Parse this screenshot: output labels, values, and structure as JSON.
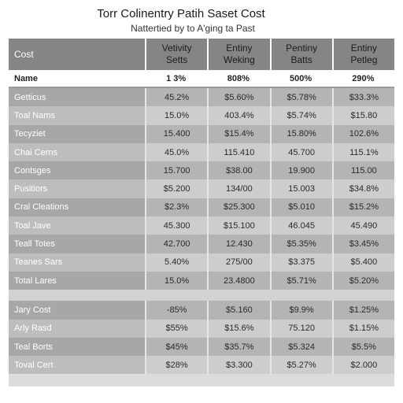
{
  "title": "Torr Colinentry Patih Saset Cost",
  "subtitle": "Nattertied by to A'ging ta Past",
  "table": {
    "corner": "Cost",
    "columns": [
      "Vetivity\nSetts",
      "Entiny\nWeking",
      "Pentiny\nBatts",
      "Entiny\nPetleg"
    ],
    "name_row": {
      "label": "Name",
      "values": [
        "1 3%",
        "808%",
        "500%",
        "290%"
      ]
    },
    "rows_top": [
      {
        "label": "Getticus",
        "values": [
          "45.2%",
          "$5.60%",
          "$5.78%",
          "$33.3%"
        ]
      },
      {
        "label": "Toal Nams",
        "values": [
          "15.0%",
          "403.4%",
          "$5.74%",
          "$15.80"
        ]
      },
      {
        "label": "Tecyziet",
        "values": [
          "15.400",
          "$15.4%",
          "15.80%",
          "102.6%"
        ]
      },
      {
        "label": "Chai Cerns",
        "values": [
          "45.0%",
          "115.410",
          "45.700",
          "115.1%"
        ]
      },
      {
        "label": "Contsges",
        "values": [
          "15.700",
          "$38.00",
          "19.900",
          "115.00"
        ]
      },
      {
        "label": "Pusitiors",
        "values": [
          "$5.200",
          "134/00",
          "15.003",
          "$34.8%"
        ]
      },
      {
        "label": "Cral Cleations",
        "values": [
          "$2.3%",
          "$25.300",
          "$5.010",
          "$15.2%"
        ]
      },
      {
        "label": "Toal Jave",
        "values": [
          "45.300",
          "$15.100",
          "46.045",
          "45.490"
        ]
      },
      {
        "label": "Teall Totes",
        "values": [
          "42.700",
          "12.430",
          "$5.35%",
          "$3.45%"
        ]
      },
      {
        "label": "Teanes Sars",
        "values": [
          "5.40%",
          "275/00",
          "$3.375",
          "$5.400"
        ]
      },
      {
        "label": "Total Lares",
        "values": [
          "15.0%",
          "23.4800",
          "$5.71%",
          "$5.20%"
        ]
      }
    ],
    "rows_bottom": [
      {
        "label": "Jary Cost",
        "values": [
          "-85%",
          "$5.160",
          "$9.9%",
          "$1.25%"
        ]
      },
      {
        "label": "Arly Rasd",
        "values": [
          "$55%",
          "$15.6%",
          "75.120",
          "$1.15%"
        ]
      },
      {
        "label": "Teal Borts",
        "values": [
          "$45%",
          "$35.7%",
          "$5.324",
          "$5.5%"
        ]
      },
      {
        "label": "Toval Cert",
        "values": [
          "$28%",
          "$3.300",
          "$5.27%",
          "$2.000"
        ]
      }
    ]
  }
}
